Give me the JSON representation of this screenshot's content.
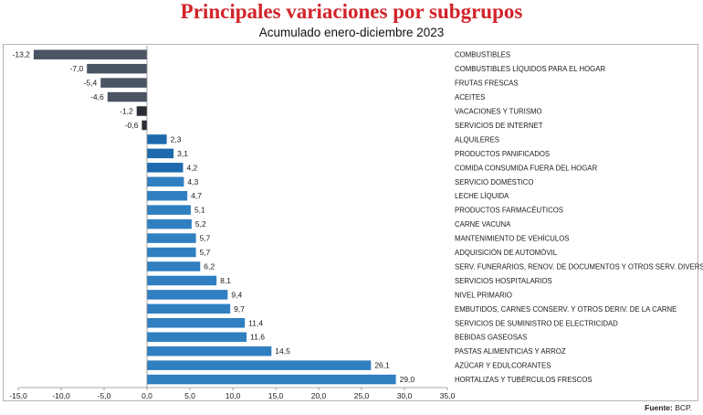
{
  "title": "Principales variaciones por subgrupos",
  "subtitle": "Acumulado enero-diciembre 2023",
  "source": {
    "label": "Fuente:",
    "value": "BCP."
  },
  "colors": {
    "title": "#d2232a",
    "negative_bar": "#4a5463",
    "small_negative_bar": "#2a2e34",
    "positive_bar": "#2f7fc1",
    "dark_positive_bar": "#1c6aad"
  },
  "chart_data": {
    "type": "bar",
    "orientation": "horizontal",
    "title": "Principales variaciones por subgrupos",
    "subtitle": "Acumulado enero-diciembre 2023",
    "xlim": [
      -15,
      35
    ],
    "x_ticks": [
      -15,
      -10,
      -5,
      0,
      5,
      10,
      15,
      20,
      25,
      30,
      35
    ],
    "x_tick_labels": [
      "-15,0",
      "-10,0",
      "-5,0",
      "0,0",
      "5,0",
      "10,0",
      "15,0",
      "20,0",
      "25,0",
      "30,0",
      "35,0"
    ],
    "grid": false,
    "categories": [
      "COMBUSTIBLES",
      "COMBUSTIBLES LÍQUIDOS PARA EL HOGAR",
      "FRUTAS FRESCAS",
      "ACEITES",
      "VACACIONES Y TURISMO",
      "SERVICIOS DE INTERNET",
      "ALQUILERES",
      "PRODUCTOS PANIFICADOS",
      "COMIDA CONSUMIDA FUERA DEL HOGAR",
      "SERVICIO DOMÉSTICO",
      "LECHE LÍQUIDA",
      "PRODUCTOS FARMACÉUTICOS",
      "CARNE VACUNA",
      "MANTENIMIENTO DE VEHÍCULOS",
      "ADQUISICIÓN DE AUTOMÓVIL",
      "SERV. FUNERARIOS, RENOV. DE DOCUMENTOS Y OTROS SERV. DIVERSOS",
      "SERVICIOS HOSPITALARIOS",
      "NIVEL PRIMARIO",
      "EMBUTIDOS, CARNES CONSERV. Y OTROS DERIV. DE LA CARNE",
      "SERVICIOS DE SUMINISTRO DE ELECTRICIDAD",
      "BEBIDAS GASEOSAS",
      "PASTAS ALIMENTICIAS Y ARROZ",
      "AZÚCAR Y EDULCORANTES",
      "HORTALIZAS Y TUBÉRCULOS FRESCOS"
    ],
    "values": [
      -13.2,
      -7.0,
      -5.4,
      -4.6,
      -1.2,
      -0.6,
      2.3,
      3.1,
      4.2,
      4.3,
      4.7,
      5.1,
      5.2,
      5.7,
      5.7,
      6.2,
      8.1,
      9.4,
      9.7,
      11.4,
      11.6,
      14.5,
      26.1,
      29.0
    ],
    "value_labels": [
      "-13,2",
      "-7,0",
      "-5,4",
      "-4,6",
      "-1,2",
      "-0,6",
      "2,3",
      "3,1",
      "4,2",
      "4,3",
      "4,7",
      "5,1",
      "5,2",
      "5,7",
      "5,7",
      "6,2",
      "8,1",
      "9,4",
      "9,7",
      "11,4",
      "11,6",
      "14,5",
      "26,1",
      "29,0"
    ],
    "bar_colors": [
      "#4a5463",
      "#4a5463",
      "#4a5463",
      "#4a5463",
      "#2a2e34",
      "#2a2e34",
      "#1c6aad",
      "#1c6aad",
      "#1c6aad",
      "#2f7fc1",
      "#2f7fc1",
      "#2f7fc1",
      "#2f7fc1",
      "#2f7fc1",
      "#2f7fc1",
      "#2f7fc1",
      "#2f7fc1",
      "#2f7fc1",
      "#2f7fc1",
      "#2f7fc1",
      "#2f7fc1",
      "#2f7fc1",
      "#2f7fc1",
      "#2f7fc1"
    ]
  }
}
